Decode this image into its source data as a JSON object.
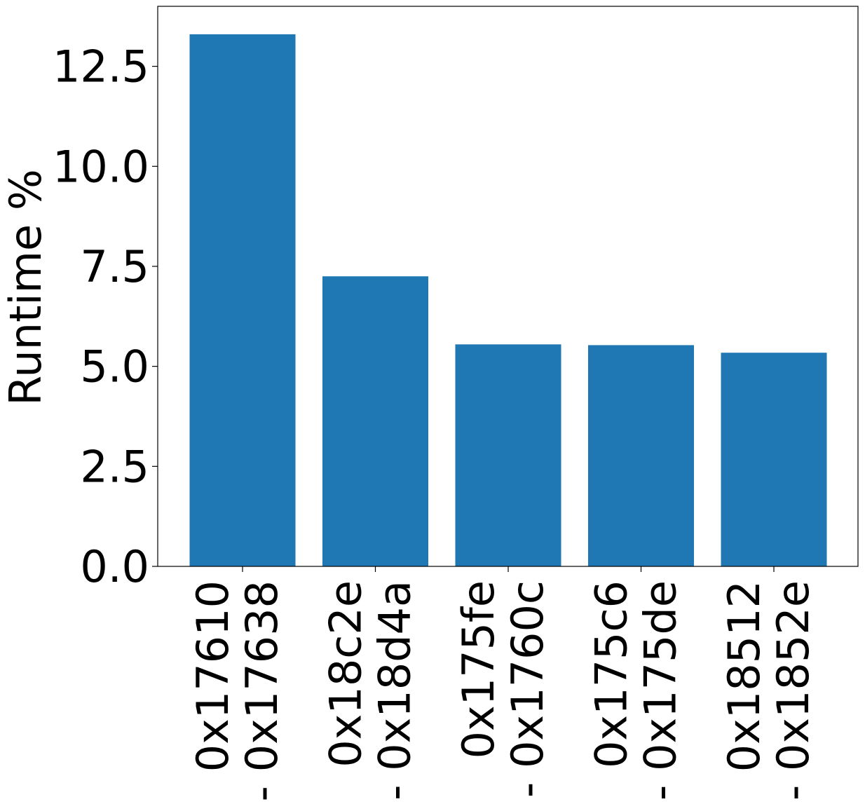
{
  "chart_data": {
    "type": "bar",
    "title": "",
    "xlabel": "",
    "ylabel": "Runtime %",
    "ylim": [
      0,
      14
    ],
    "yticks": [
      0.0,
      2.5,
      5.0,
      7.5,
      10.0,
      12.5
    ],
    "ytick_labels": [
      "0.0",
      "2.5",
      "5.0",
      "7.5",
      "10.0",
      "12.5"
    ],
    "categories": [
      [
        "0x17610",
        "- 0x17638"
      ],
      [
        "0x18c2e",
        "- 0x18d4a"
      ],
      [
        "0x175fe",
        "- 0x1760c"
      ],
      [
        "0x175c6",
        "- 0x175de"
      ],
      [
        "0x18512",
        "- 0x1852e"
      ]
    ],
    "values": [
      13.3,
      7.25,
      5.55,
      5.53,
      5.34
    ],
    "bar_color": "#1f77b4",
    "grid": false,
    "legend": false
  }
}
